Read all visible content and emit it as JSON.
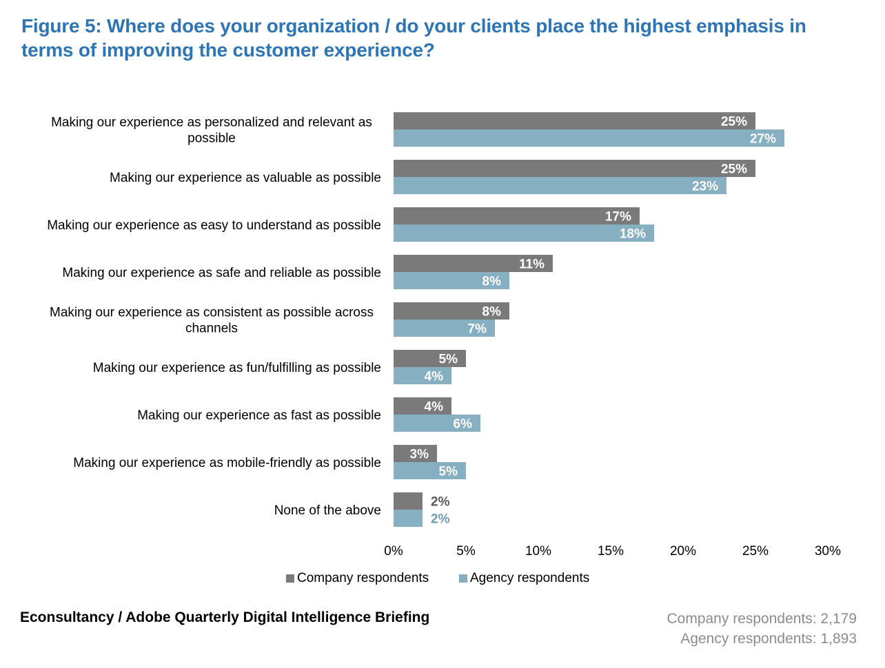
{
  "title": "Figure 5: Where does your organization / do your clients place the highest emphasis in terms of improving the customer experience?",
  "colors": {
    "company": "#7a7a7a",
    "agency": "#86afc1",
    "title": "#2e75b6",
    "counts": "#8c8c8c"
  },
  "chart_data": {
    "type": "bar",
    "orientation": "horizontal",
    "title": "Figure 5: Where does your organization / do your clients place the highest emphasis in terms of improving the customer experience?",
    "categories": [
      [
        "Making our experience as personalized and relevant as",
        "possible"
      ],
      [
        "Making our experience as valuable as possible"
      ],
      [
        "Making our experience as easy to understand as possible"
      ],
      [
        "Making our experience as safe and reliable as possible"
      ],
      [
        "Making our experience as consistent as possible across",
        "channels"
      ],
      [
        "Making our experience as fun/fulfilling as possible"
      ],
      [
        "Making our experience as fast as possible"
      ],
      [
        "Making our experience as mobile-friendly as possible"
      ],
      [
        "None of the above"
      ]
    ],
    "series": [
      {
        "name": "Company respondents",
        "values": [
          25,
          25,
          17,
          11,
          8,
          5,
          4,
          3,
          2
        ],
        "labels": [
          "25%",
          "25%",
          "17%",
          "11%",
          "8%",
          "5%",
          "4%",
          "3%",
          "2%"
        ]
      },
      {
        "name": "Agency respondents",
        "values": [
          27,
          23,
          18,
          8,
          7,
          4,
          6,
          5,
          2
        ],
        "labels": [
          "27%",
          "23%",
          "18%",
          "8%",
          "7%",
          "4%",
          "6%",
          "5%",
          "2%"
        ]
      }
    ],
    "xlim": [
      0,
      30
    ],
    "xticks": [
      0,
      5,
      10,
      15,
      20,
      25,
      30
    ],
    "xtick_labels": [
      "0%",
      "5%",
      "10%",
      "15%",
      "20%",
      "25%",
      "30%"
    ],
    "xlabel": "",
    "ylabel": "",
    "grid": false,
    "legend_position": "bottom"
  },
  "legend": {
    "company": "Company respondents",
    "agency": "Agency respondents"
  },
  "footer": {
    "source": "Econsultancy / Adobe Quarterly Digital Intelligence Briefing",
    "company_count": "Company respondents: 2,179",
    "agency_count": "Agency respondents: 1,893"
  }
}
